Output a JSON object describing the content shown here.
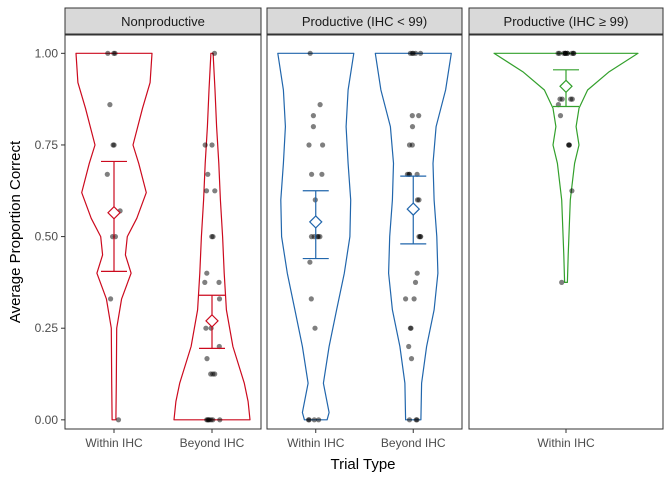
{
  "chart_data": {
    "type": "violin",
    "xlabel": "Trial Type",
    "ylabel": "Average Proportion Correct",
    "ylim": [
      -0.025,
      1.05
    ],
    "yticks": [
      0,
      0.25,
      0.5,
      0.75,
      1
    ],
    "ytick_labels": [
      "0.00",
      "0.25",
      "0.50",
      "0.75",
      "1.00"
    ],
    "grid": false,
    "legend": "none",
    "panels": [
      {
        "name": "Nonproductive",
        "color": "#CC0A1E",
        "groups": [
          {
            "label": "Within IHC",
            "mean": 0.565,
            "ci": [
              0.405,
              0.705
            ],
            "density": [
              [
                0,
                0.05
              ],
              [
                0.1,
                0.06
              ],
              [
                0.25,
                0.07
              ],
              [
                0.33,
                0.2
              ],
              [
                0.4,
                0.45
              ],
              [
                0.45,
                0.3
              ],
              [
                0.5,
                0.35
              ],
              [
                0.55,
                0.6
              ],
              [
                0.62,
                0.85
              ],
              [
                0.7,
                0.65
              ],
              [
                0.75,
                0.5
              ],
              [
                0.85,
                0.75
              ],
              [
                0.92,
                0.95
              ],
              [
                1,
                1
              ]
            ],
            "points": [
              1,
              1,
              1,
              0.86,
              0.75,
              0.75,
              0.67,
              0.57,
              0.5,
              0.5,
              0.33,
              0
            ]
          },
          {
            "label": "Beyond IHC",
            "mean": 0.27,
            "ci": [
              0.195,
              0.34
            ],
            "density": [
              [
                0,
                1
              ],
              [
                0.05,
                0.95
              ],
              [
                0.1,
                0.85
              ],
              [
                0.2,
                0.55
              ],
              [
                0.3,
                0.38
              ],
              [
                0.4,
                0.32
              ],
              [
                0.5,
                0.28
              ],
              [
                0.6,
                0.22
              ],
              [
                0.7,
                0.18
              ],
              [
                0.8,
                0.12
              ],
              [
                0.9,
                0.08
              ],
              [
                1,
                0.03
              ]
            ],
            "points": [
              1,
              0.75,
              0.75,
              0.67,
              0.625,
              0.625,
              0.5,
              0.5,
              0.4,
              0.375,
              0.375,
              0.33,
              0.25,
              0.25,
              0.2,
              0.167,
              0.125,
              0.125,
              0.125,
              0,
              0,
              0,
              0,
              0,
              0,
              0
            ]
          }
        ]
      },
      {
        "name": "Productive (IHC < 99)",
        "color": "#2166AC",
        "groups": [
          {
            "label": "Within IHC",
            "mean": 0.54,
            "ci": [
              0.44,
              0.625
            ],
            "density": [
              [
                0,
                0.3
              ],
              [
                0.02,
                0.35
              ],
              [
                0.1,
                0.2
              ],
              [
                0.2,
                0.35
              ],
              [
                0.3,
                0.55
              ],
              [
                0.4,
                0.75
              ],
              [
                0.5,
                0.9
              ],
              [
                0.6,
                0.92
              ],
              [
                0.7,
                0.85
              ],
              [
                0.8,
                0.8
              ],
              [
                0.9,
                0.85
              ],
              [
                1,
                1
              ]
            ],
            "points": [
              1,
              0.86,
              0.83,
              0.8,
              0.75,
              0.75,
              0.67,
              0.67,
              0.6,
              0.5,
              0.5,
              0.5,
              0.5,
              0.5,
              0.43,
              0.33,
              0.25,
              0,
              0,
              0,
              0
            ]
          },
          {
            "label": "Beyond IHC",
            "mean": 0.575,
            "ci": [
              0.48,
              0.665
            ],
            "density": [
              [
                0,
                0.2
              ],
              [
                0.1,
                0.22
              ],
              [
                0.2,
                0.35
              ],
              [
                0.3,
                0.55
              ],
              [
                0.4,
                0.65
              ],
              [
                0.5,
                0.62
              ],
              [
                0.6,
                0.55
              ],
              [
                0.7,
                0.52
              ],
              [
                0.8,
                0.6
              ],
              [
                0.9,
                0.85
              ],
              [
                1,
                1
              ]
            ],
            "points": [
              1,
              1,
              1,
              1,
              1,
              0.83,
              0.83,
              0.8,
              0.75,
              0.75,
              0.67,
              0.67,
              0.67,
              0.67,
              0.6,
              0.6,
              0.5,
              0.5,
              0.5,
              0.4,
              0.375,
              0.33,
              0.33,
              0.25,
              0.25,
              0.2,
              0.167,
              0,
              0,
              0
            ]
          }
        ]
      },
      {
        "name": "Productive (IHC ≥ 99)",
        "color": "#33A02C",
        "groups": [
          {
            "label": "Within IHC",
            "mean": 0.91,
            "ci": [
              0.855,
              0.955
            ],
            "density": [
              [
                0.375,
                0.02
              ],
              [
                0.45,
                0.03
              ],
              [
                0.5,
                0.04
              ],
              [
                0.6,
                0.06
              ],
              [
                0.7,
                0.12
              ],
              [
                0.75,
                0.18
              ],
              [
                0.8,
                0.14
              ],
              [
                0.85,
                0.18
              ],
              [
                0.9,
                0.3
              ],
              [
                0.95,
                0.6
              ],
              [
                1,
                1
              ]
            ],
            "points": [
              1,
              1,
              1,
              1,
              1,
              1,
              1,
              1,
              1,
              1,
              1,
              0.875,
              0.875,
              0.875,
              0.875,
              0.86,
              0.83,
              0.75,
              0.75,
              0.75,
              0.625,
              0.375
            ]
          }
        ]
      }
    ]
  }
}
